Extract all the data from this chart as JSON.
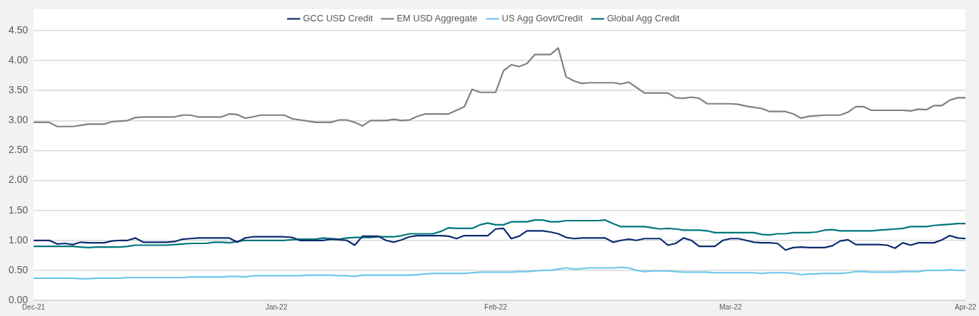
{
  "chart_data": {
    "type": "line",
    "categories": [
      "Dec-21",
      null,
      null,
      null,
      null,
      null,
      null,
      null,
      null,
      null,
      null,
      null,
      null,
      null,
      null,
      null,
      null,
      null,
      null,
      null,
      null,
      null,
      null,
      null,
      null,
      null,
      null,
      null,
      null,
      null,
      null,
      "Jan-22",
      null,
      null,
      null,
      null,
      null,
      null,
      null,
      null,
      null,
      null,
      null,
      null,
      null,
      null,
      null,
      null,
      null,
      null,
      null,
      null,
      null,
      null,
      null,
      null,
      null,
      null,
      null,
      "Feb-22",
      null,
      null,
      null,
      null,
      null,
      null,
      null,
      null,
      null,
      null,
      null,
      null,
      null,
      null,
      null,
      null,
      null,
      null,
      null,
      null,
      null,
      null,
      null,
      null,
      null,
      null,
      null,
      null,
      null,
      "Mar-22",
      null,
      null,
      null,
      null,
      null,
      null,
      null,
      null,
      null,
      null,
      null,
      null,
      null,
      null,
      null,
      null,
      null,
      null,
      null,
      null,
      null,
      null,
      null,
      null,
      null,
      null,
      null,
      null,
      null,
      "Apr-22"
    ],
    "series": [
      {
        "name": "GCC USD Credit",
        "color": "#0b2a6f",
        "values": [
          1.0,
          1.0,
          1.0,
          0.94,
          0.95,
          0.93,
          0.97,
          0.96,
          0.96,
          0.96,
          0.99,
          1.0,
          1.0,
          1.04,
          0.97,
          0.97,
          0.97,
          0.97,
          0.98,
          1.02,
          1.03,
          1.04,
          1.04,
          1.04,
          1.04,
          1.04,
          0.97,
          1.04,
          1.06,
          1.06,
          1.06,
          1.06,
          1.06,
          1.05,
          1.0,
          1.0,
          1.0,
          1.0,
          1.02,
          1.01,
          1.0,
          0.92,
          1.07,
          1.07,
          1.07,
          1.0,
          0.97,
          1.01,
          1.06,
          1.08,
          1.08,
          1.08,
          1.08,
          1.07,
          1.03,
          1.08,
          1.08,
          1.08,
          1.08,
          1.19,
          1.2,
          1.03,
          1.07,
          1.16,
          1.16,
          1.16,
          1.14,
          1.11,
          1.05,
          1.03,
          1.04,
          1.04,
          1.04,
          1.04,
          0.97,
          1.0,
          1.02,
          1.0,
          1.03,
          1.03,
          1.03,
          0.92,
          0.95,
          1.04,
          1.0,
          0.9,
          0.9,
          0.9,
          1.0,
          1.03,
          1.03,
          1.0,
          0.97,
          0.96,
          0.96,
          0.95,
          0.84,
          0.88,
          0.89,
          0.88,
          0.88,
          0.88,
          0.91,
          0.99,
          1.01,
          0.93,
          0.93,
          0.93,
          0.93,
          0.92,
          0.87,
          0.96,
          0.92,
          0.96,
          0.96,
          0.96,
          1.01,
          1.08,
          1.04,
          1.03
        ]
      },
      {
        "name": "EM USD Aggregate",
        "color": "#808080",
        "values": [
          2.97,
          2.97,
          2.97,
          2.9,
          2.9,
          2.9,
          2.92,
          2.94,
          2.94,
          2.94,
          2.98,
          2.99,
          3.0,
          3.05,
          3.06,
          3.06,
          3.06,
          3.06,
          3.06,
          3.09,
          3.09,
          3.06,
          3.06,
          3.06,
          3.06,
          3.11,
          3.1,
          3.04,
          3.06,
          3.09,
          3.09,
          3.09,
          3.09,
          3.03,
          3.01,
          2.99,
          2.97,
          2.97,
          2.97,
          3.01,
          3.01,
          2.97,
          2.91,
          3.0,
          3.0,
          3.0,
          3.02,
          3.0,
          3.01,
          3.07,
          3.11,
          3.11,
          3.11,
          3.11,
          3.17,
          3.23,
          3.52,
          3.47,
          3.47,
          3.47,
          3.83,
          3.93,
          3.9,
          3.95,
          4.1,
          4.1,
          4.1,
          4.21,
          3.73,
          3.66,
          3.62,
          3.63,
          3.63,
          3.63,
          3.63,
          3.61,
          3.64,
          3.55,
          3.46,
          3.46,
          3.46,
          3.46,
          3.38,
          3.37,
          3.39,
          3.37,
          3.28,
          3.28,
          3.28,
          3.28,
          3.27,
          3.24,
          3.22,
          3.2,
          3.15,
          3.15,
          3.15,
          3.11,
          3.04,
          3.07,
          3.08,
          3.09,
          3.09,
          3.09,
          3.14,
          3.23,
          3.23,
          3.17,
          3.17,
          3.17,
          3.17,
          3.17,
          3.16,
          3.19,
          3.18,
          3.25,
          3.25,
          3.34,
          3.38,
          3.38
        ]
      },
      {
        "name": "US Agg Govt/Credit",
        "color": "#6ec6ea",
        "values": [
          0.37,
          0.37,
          0.37,
          0.37,
          0.37,
          0.37,
          0.36,
          0.36,
          0.37,
          0.37,
          0.37,
          0.37,
          0.38,
          0.38,
          0.38,
          0.38,
          0.38,
          0.38,
          0.38,
          0.38,
          0.39,
          0.39,
          0.39,
          0.39,
          0.39,
          0.4,
          0.4,
          0.39,
          0.41,
          0.41,
          0.41,
          0.41,
          0.41,
          0.41,
          0.41,
          0.42,
          0.42,
          0.42,
          0.42,
          0.41,
          0.41,
          0.4,
          0.42,
          0.42,
          0.42,
          0.42,
          0.42,
          0.42,
          0.42,
          0.43,
          0.44,
          0.45,
          0.45,
          0.45,
          0.45,
          0.45,
          0.46,
          0.47,
          0.47,
          0.47,
          0.47,
          0.47,
          0.48,
          0.48,
          0.49,
          0.5,
          0.5,
          0.52,
          0.54,
          0.52,
          0.53,
          0.54,
          0.54,
          0.54,
          0.54,
          0.55,
          0.54,
          0.5,
          0.48,
          0.49,
          0.49,
          0.49,
          0.48,
          0.47,
          0.47,
          0.47,
          0.47,
          0.46,
          0.46,
          0.46,
          0.46,
          0.46,
          0.46,
          0.45,
          0.46,
          0.46,
          0.46,
          0.45,
          0.43,
          0.44,
          0.44,
          0.45,
          0.45,
          0.45,
          0.46,
          0.48,
          0.48,
          0.47,
          0.47,
          0.47,
          0.47,
          0.48,
          0.48,
          0.48,
          0.5,
          0.5,
          0.5,
          0.51,
          0.5,
          0.5
        ]
      },
      {
        "name": "Global Agg Credit",
        "color": "#00767a",
        "values": [
          0.9,
          0.9,
          0.9,
          0.9,
          0.9,
          0.9,
          0.89,
          0.88,
          0.89,
          0.89,
          0.89,
          0.89,
          0.9,
          0.92,
          0.92,
          0.92,
          0.92,
          0.92,
          0.93,
          0.94,
          0.95,
          0.95,
          0.95,
          0.97,
          0.97,
          0.96,
          0.98,
          1.0,
          1.0,
          1.0,
          1.0,
          1.0,
          1.0,
          1.01,
          1.02,
          1.02,
          1.02,
          1.04,
          1.03,
          1.02,
          1.04,
          1.05,
          1.05,
          1.05,
          1.06,
          1.06,
          1.06,
          1.08,
          1.11,
          1.11,
          1.11,
          1.11,
          1.15,
          1.21,
          1.2,
          1.2,
          1.2,
          1.26,
          1.29,
          1.26,
          1.26,
          1.31,
          1.31,
          1.31,
          1.34,
          1.34,
          1.31,
          1.31,
          1.33,
          1.33,
          1.33,
          1.33,
          1.33,
          1.34,
          1.28,
          1.23,
          1.23,
          1.23,
          1.23,
          1.21,
          1.19,
          1.2,
          1.19,
          1.17,
          1.17,
          1.17,
          1.16,
          1.13,
          1.13,
          1.13,
          1.13,
          1.13,
          1.13,
          1.1,
          1.09,
          1.11,
          1.11,
          1.13,
          1.13,
          1.13,
          1.14,
          1.17,
          1.18,
          1.16,
          1.16,
          1.16,
          1.16,
          1.16,
          1.17,
          1.18,
          1.19,
          1.2,
          1.23,
          1.23,
          1.23,
          1.25,
          1.26,
          1.27,
          1.28,
          1.28
        ]
      }
    ],
    "ylim": [
      0,
      4.5
    ],
    "yticks": [
      {
        "value": 0,
        "label": "0.00"
      },
      {
        "value": 0.5,
        "label": "0.50"
      },
      {
        "value": 1,
        "label": "1.00"
      },
      {
        "value": 1.5,
        "label": "1.50"
      },
      {
        "value": 2,
        "label": "2.00"
      },
      {
        "value": 2.5,
        "label": "2.50"
      },
      {
        "value": 3,
        "label": "3.00"
      },
      {
        "value": 3.5,
        "label": "3.50"
      },
      {
        "value": 4,
        "label": "4.00"
      },
      {
        "value": 4.5,
        "label": "4.50"
      }
    ],
    "grid": "y",
    "legend": "top",
    "marker": "none",
    "line_style": "solid"
  }
}
